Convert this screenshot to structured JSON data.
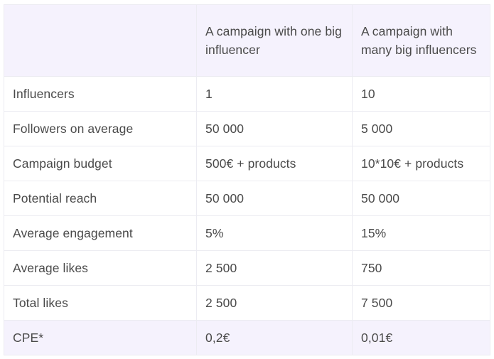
{
  "table": {
    "headers": [
      "",
      "A campaign with one big influencer",
      "A campaign with many big influencers"
    ],
    "rows": [
      [
        "Influencers",
        "1",
        "10"
      ],
      [
        "Followers on average",
        "50 000",
        "5 000"
      ],
      [
        "Campaign budget",
        "500€ + products",
        "10*10€ + products"
      ],
      [
        "Potential reach",
        "50 000",
        "50 000"
      ],
      [
        "Average engagement",
        "5%",
        "15%"
      ],
      [
        "Average likes",
        "2 500",
        "750"
      ],
      [
        "Total likes",
        "2 500",
        "7 500"
      ],
      [
        "CPE*",
        "0,2€",
        "0,01€"
      ]
    ]
  },
  "colors": {
    "header_background": "#f5f2fd",
    "highlight_row_background": "#f5f2fd",
    "border": "#ececf2",
    "text": "#4a4a4a"
  }
}
